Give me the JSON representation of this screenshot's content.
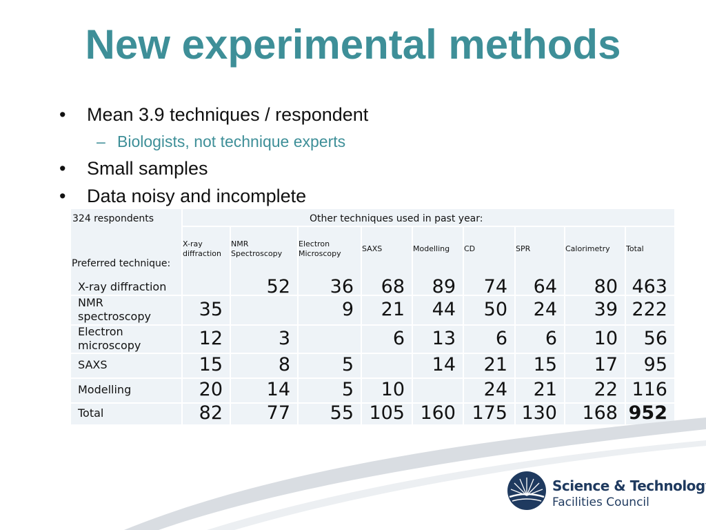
{
  "slide": {
    "title": "New experimental methods",
    "bullets": [
      {
        "text": "Mean 3.9 techniques / respondent",
        "sub": "Biologists, not technique experts"
      },
      {
        "text": "Small samples"
      },
      {
        "text": "Data noisy and incomplete"
      }
    ]
  },
  "table": {
    "corner_label": "324 respondents",
    "group_header": "Other techniques used in past year:",
    "row_header_label": "Preferred technique:",
    "columns": [
      [
        "X-ray",
        "diffraction"
      ],
      [
        "NMR",
        "Spectroscopy"
      ],
      [
        "Electron",
        "Microscopy"
      ],
      [
        "SAXS"
      ],
      [
        "Modelling"
      ],
      [
        "CD"
      ],
      [
        "SPR"
      ],
      [
        "Calorimetry"
      ],
      [
        "Total"
      ]
    ],
    "rows": [
      {
        "label": [
          "X-ray diffraction"
        ],
        "values": [
          "",
          "52",
          "36",
          "68",
          "89",
          "74",
          "64",
          "80",
          "463"
        ]
      },
      {
        "label": [
          "NMR",
          "spectroscopy"
        ],
        "values": [
          "35",
          "",
          "9",
          "21",
          "44",
          "50",
          "24",
          "39",
          "222"
        ]
      },
      {
        "label": [
          "Electron",
          "microscopy"
        ],
        "values": [
          "12",
          "3",
          "",
          "6",
          "13",
          "6",
          "6",
          "10",
          "56"
        ]
      },
      {
        "label": [
          "SAXS"
        ],
        "values": [
          "15",
          "8",
          "5",
          "",
          "14",
          "21",
          "15",
          "17",
          "95"
        ]
      },
      {
        "label": [
          "Modelling"
        ],
        "values": [
          "20",
          "14",
          "5",
          "10",
          "",
          "24",
          "21",
          "22",
          "116"
        ]
      },
      {
        "label": [
          "Total"
        ],
        "values": [
          "82",
          "77",
          "55",
          "105",
          "160",
          "175",
          "130",
          "168",
          "952"
        ]
      }
    ]
  },
  "logo": {
    "line1": "Science & Technology",
    "line2": "Facilities Council",
    "icon": "stfc-sunburst-icon"
  },
  "colors": {
    "accent": "#3e8f98",
    "logo_navy": "#1f3a5f"
  }
}
